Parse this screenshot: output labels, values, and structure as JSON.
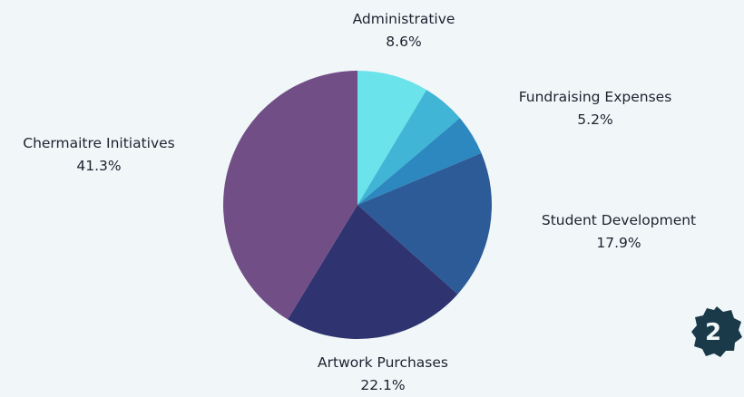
{
  "chart_data": {
    "type": "pie",
    "start_angle_deg": 0,
    "direction": "clockwise",
    "slices": [
      {
        "label": "Administrative",
        "value": 8.6,
        "display": "8.6%",
        "color": "#6ae3ea"
      },
      {
        "label": "Fundraising Expenses",
        "value": 5.2,
        "display": "5.2%",
        "color": "#40b5d6"
      },
      {
        "label": "",
        "value": 4.9,
        "display": "",
        "color": "#2d88bf"
      },
      {
        "label": "Student Development",
        "value": 17.9,
        "display": "17.9%",
        "color": "#2d5b97"
      },
      {
        "label": "Artwork Purchases",
        "value": 22.1,
        "display": "22.1%",
        "color": "#2f3370"
      },
      {
        "label": "Chermaitre Initiatives",
        "value": 41.3,
        "display": "41.3%",
        "color": "#714e86"
      }
    ]
  },
  "badge": {
    "text": "2",
    "color": "#1a3a4a"
  }
}
